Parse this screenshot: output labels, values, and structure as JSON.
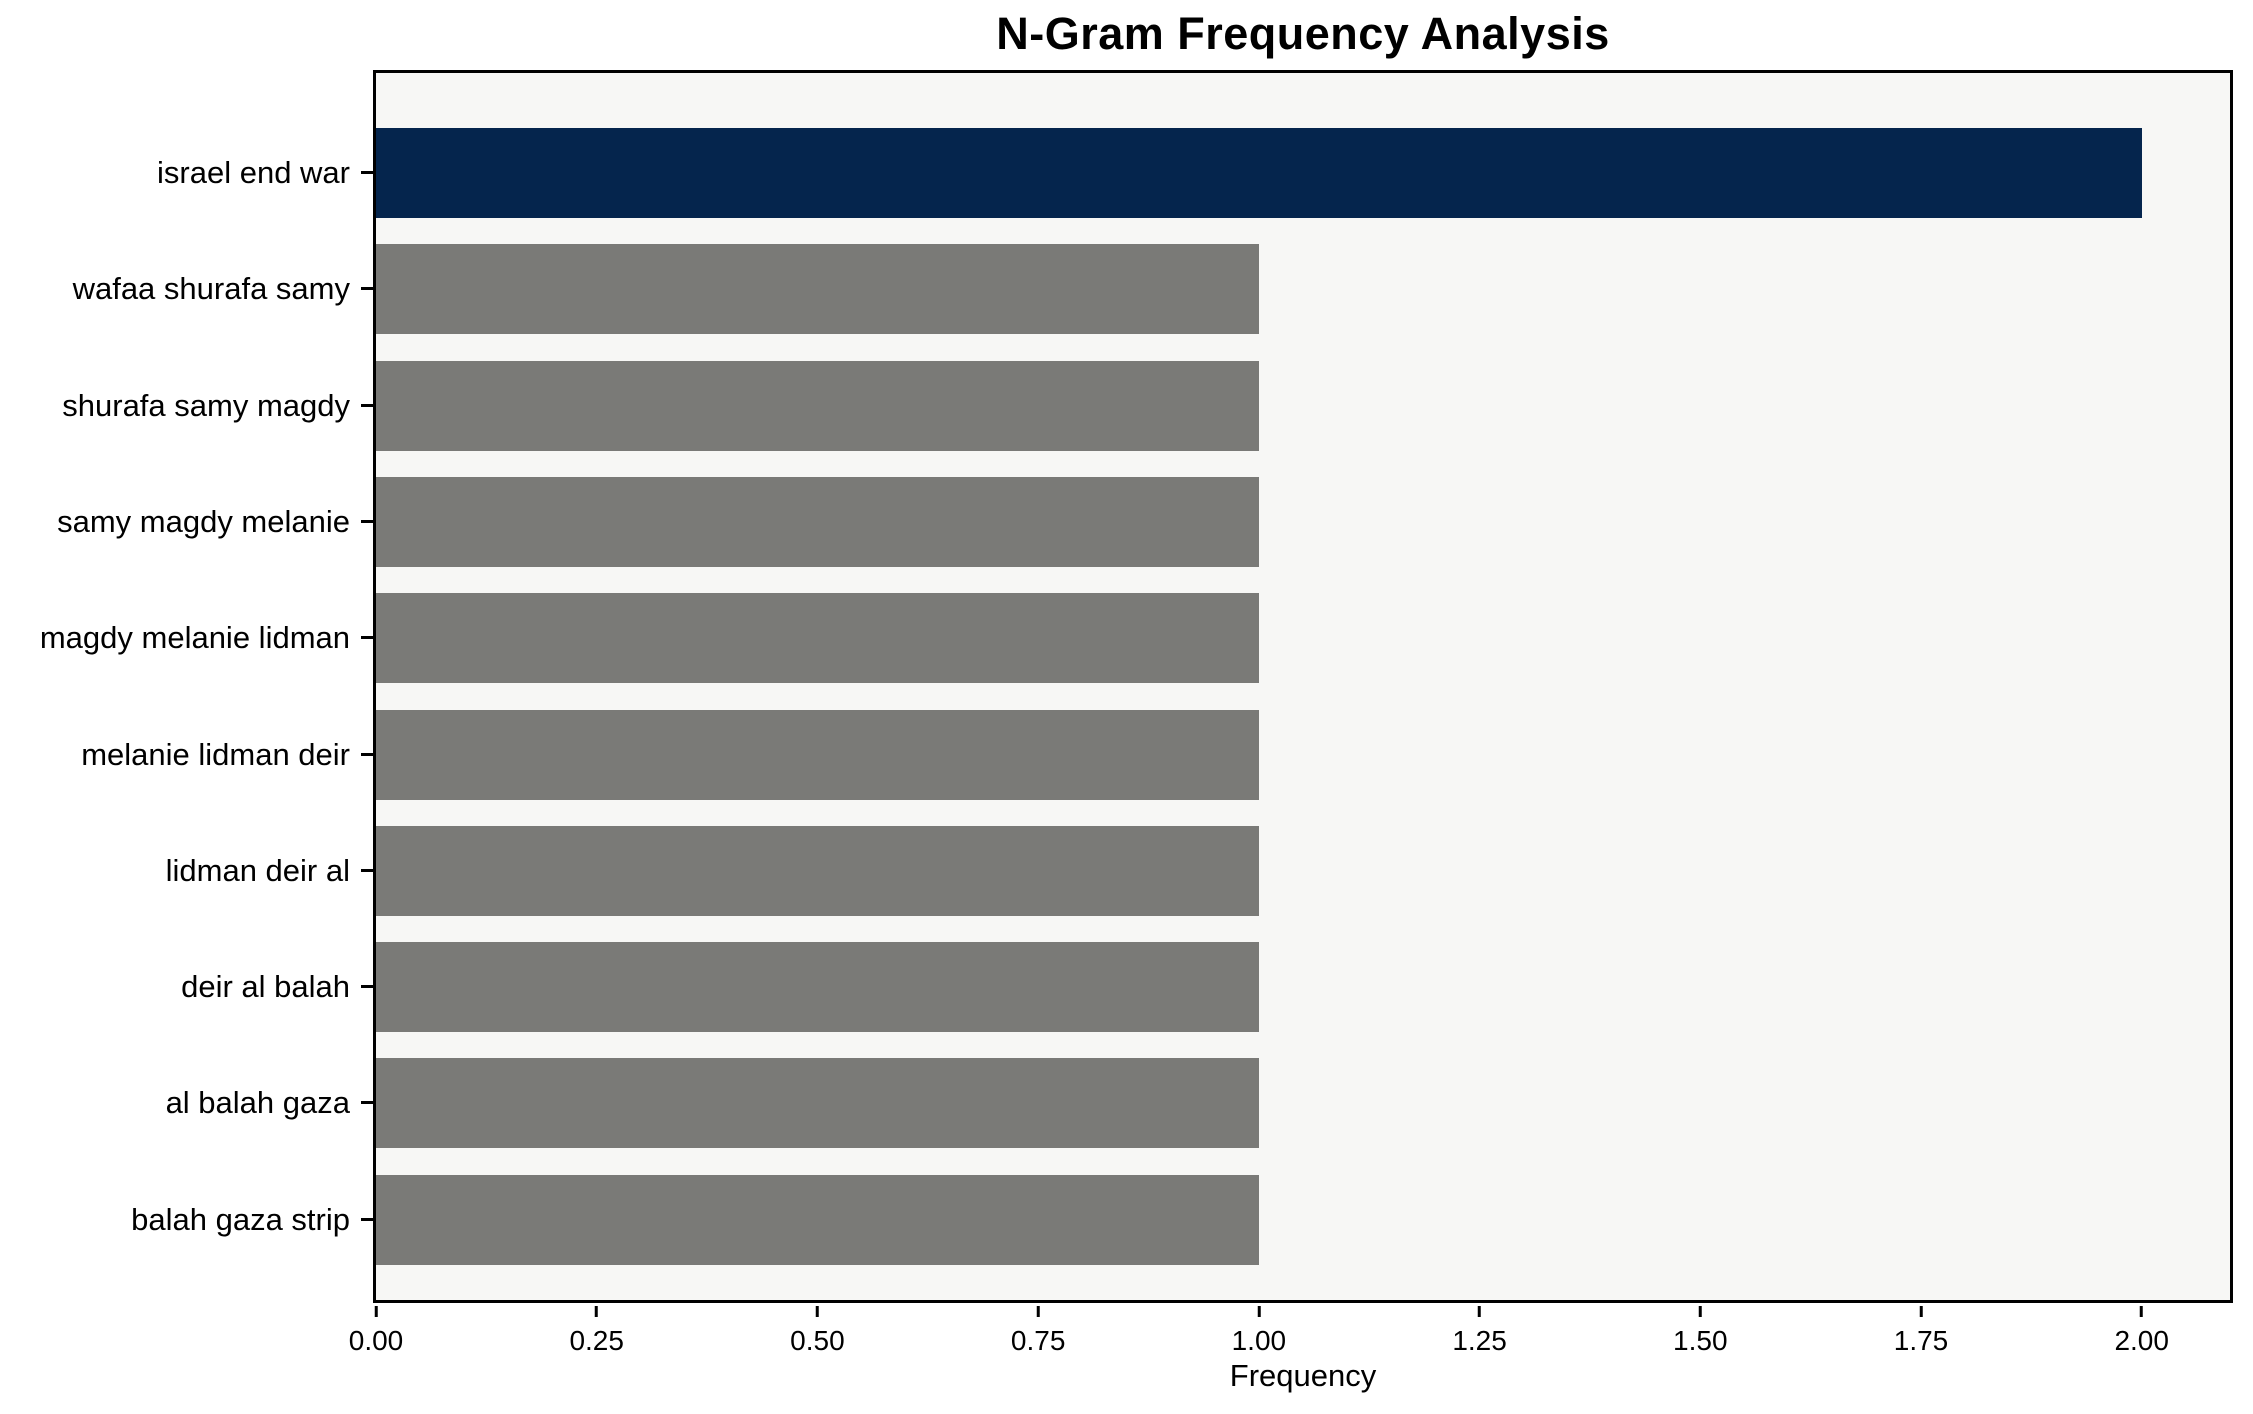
{
  "chart_data": {
    "type": "bar",
    "orientation": "horizontal",
    "title": "N-Gram Frequency Analysis",
    "xlabel": "Frequency",
    "ylabel": "",
    "categories": [
      "israel end war",
      "wafaa shurafa samy",
      "shurafa samy magdy",
      "samy magdy melanie",
      "magdy melanie lidman",
      "melanie lidman deir",
      "lidman deir al",
      "deir al balah",
      "al balah gaza",
      "balah gaza strip"
    ],
    "values": [
      2,
      1,
      1,
      1,
      1,
      1,
      1,
      1,
      1,
      1
    ],
    "bar_colors": [
      "#05254d",
      "#7a7a77",
      "#7a7a77",
      "#7a7a77",
      "#7a7a77",
      "#7a7a77",
      "#7a7a77",
      "#7a7a77",
      "#7a7a77",
      "#7a7a77"
    ],
    "highlight_color": "#05254d",
    "default_bar_color": "#7a7a77",
    "plot_background": "#f7f7f5",
    "page_background": "#ffffff",
    "axis_color": "#000000",
    "xlim": [
      0,
      2.1
    ],
    "xticks": [
      "0.00",
      "0.25",
      "0.50",
      "0.75",
      "1.00",
      "1.25",
      "1.50",
      "1.75",
      "2.00"
    ],
    "grid": false,
    "legend_position": "none"
  }
}
